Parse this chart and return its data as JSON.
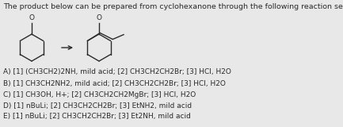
{
  "title": "The product below can be prepared from cyclohexanone through the following reaction sequence?",
  "options": [
    "A) [1] (CH3CH2)2NH, mild acid; [2] CH3CH2CH2Br; [3] HCl, H2O",
    "B) [1] CH3CH2NH2, mild acid; [2] CH3CH2CH2Br; [3] HCl, H2O",
    "C) [1] CH3OH, H+; [2] CH3CH2CH2MgBr; [3] HCl, H2O",
    "D) [1] nBuLi; [2] CH3CH2CH2Br; [3] EtNH2, mild acid",
    "E) [1] nBuLi; [2] CH3CH2CH2Br; [3] Et2NH, mild acid"
  ],
  "background_color": "#e8e8e8",
  "text_color": "#2a2a2a",
  "title_fontsize": 6.8,
  "option_fontsize": 6.5,
  "struct_color": "#2a2a2a"
}
